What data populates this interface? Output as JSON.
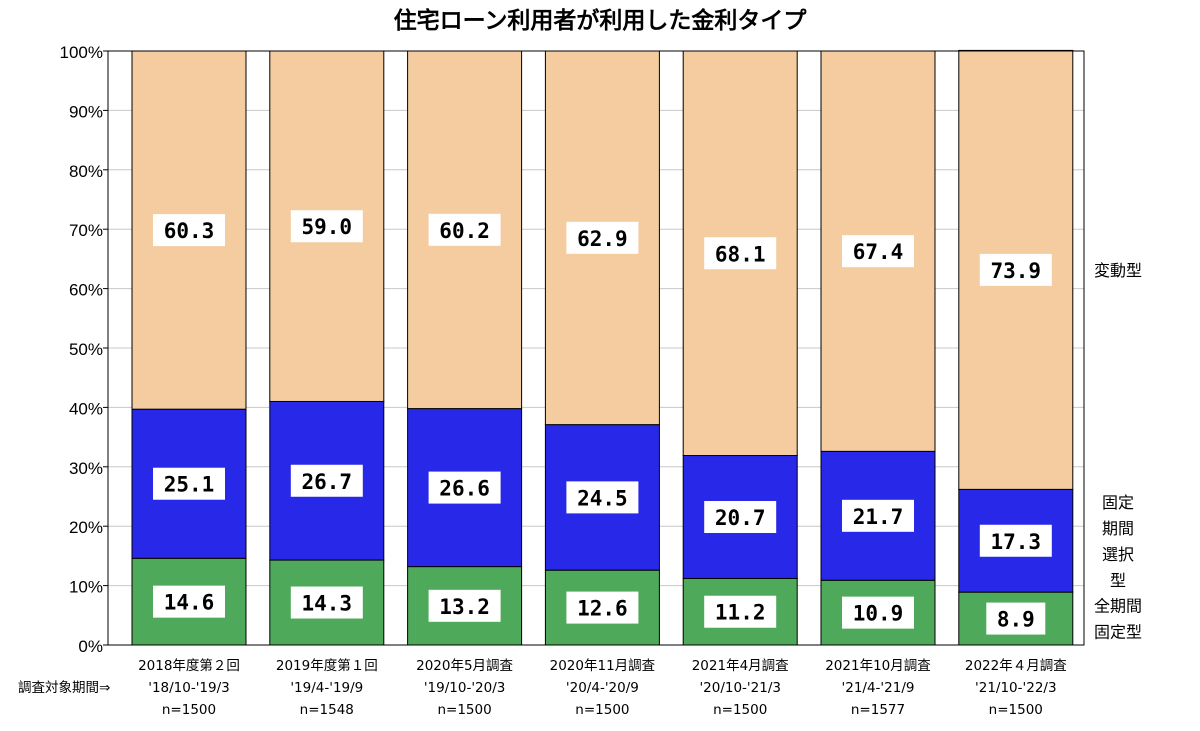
{
  "chart_data": {
    "type": "bar",
    "stacked": true,
    "title": "住宅ローン利用者が利用した金利タイプ",
    "ylim": [
      0,
      100
    ],
    "yticks": [
      "0%",
      "10%",
      "20%",
      "30%",
      "40%",
      "50%",
      "60%",
      "70%",
      "80%",
      "90%",
      "100%"
    ],
    "grid": true,
    "x_note": "調査対象期間⇒",
    "categories": [
      {
        "survey": "2018年度第２回",
        "period": "'18/10-'19/3",
        "n": "n=1500"
      },
      {
        "survey": "2019年度第１回",
        "period": "'19/4-'19/9",
        "n": "n=1548"
      },
      {
        "survey": "2020年5月調査",
        "period": "'19/10-'20/3",
        "n": "n=1500"
      },
      {
        "survey": "2020年11月調査",
        "period": "'20/4-'20/9",
        "n": "n=1500"
      },
      {
        "survey": "2021年4月調査",
        "period": "'20/10-'21/3",
        "n": "n=1500"
      },
      {
        "survey": "2021年10月調査",
        "period": "'21/4-'21/9",
        "n": "n=1577"
      },
      {
        "survey": "2022年４月調査",
        "period": "'21/10-'22/3",
        "n": "n=1500"
      }
    ],
    "series": [
      {
        "name": "全期間固定型",
        "label_lines": [
          "全期間",
          "固定型"
        ],
        "color": "#4fa95a",
        "values": [
          14.6,
          14.3,
          13.2,
          12.6,
          11.2,
          10.9,
          8.9
        ],
        "labels": [
          "14.6",
          "14.3",
          "13.2",
          "12.6",
          "11.2",
          "10.9",
          "8.9"
        ]
      },
      {
        "name": "固定期間選択型",
        "label_lines": [
          "固定",
          "期間",
          "選択",
          "型"
        ],
        "color": "#2828e8",
        "values": [
          25.1,
          26.7,
          26.6,
          24.5,
          20.7,
          21.7,
          17.3
        ],
        "labels": [
          "25.1",
          "26.7",
          "26.6",
          "24.5",
          "20.7",
          "21.7",
          "17.3"
        ]
      },
      {
        "name": "変動型",
        "label_lines": [
          "変動型"
        ],
        "color": "#f5cc9f",
        "values": [
          60.3,
          59.0,
          60.2,
          62.9,
          68.1,
          67.4,
          73.9
        ],
        "labels": [
          "60.3",
          "59.0",
          "60.2",
          "62.9",
          "68.1",
          "67.4",
          "73.9"
        ]
      }
    ]
  }
}
